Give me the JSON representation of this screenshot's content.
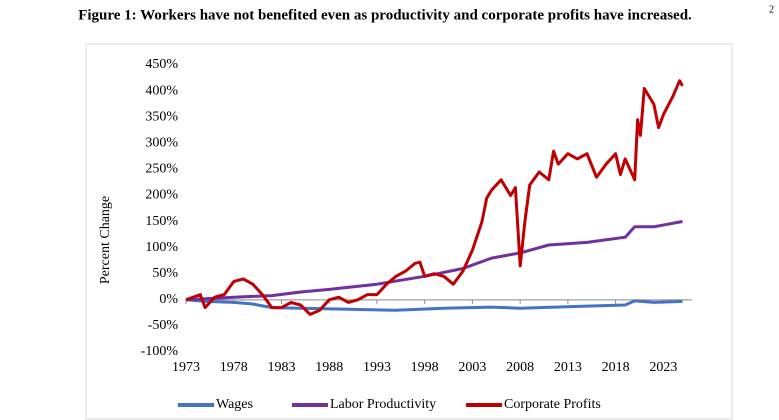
{
  "chart_data": {
    "type": "line",
    "title": "Figure 1: Workers have not benefited even as productivity and corporate profits have increased.",
    "title_note": "2",
    "ylabel": "Percent Change",
    "xlim": [
      1973,
      2026
    ],
    "xticks": [
      1973,
      1978,
      1983,
      1988,
      1993,
      1998,
      2003,
      2008,
      2013,
      2018,
      2023
    ],
    "ylim": [
      -100,
      450
    ],
    "yticks": [
      {
        "value": -100,
        "label": "-100%"
      },
      {
        "value": -50,
        "label": "-50%"
      },
      {
        "value": 0,
        "label": "0%"
      },
      {
        "value": 50,
        "label": "50%"
      },
      {
        "value": 100,
        "label": "100%"
      },
      {
        "value": 150,
        "label": "150%"
      },
      {
        "value": 200,
        "label": "200%"
      },
      {
        "value": 250,
        "label": "250%"
      },
      {
        "value": 300,
        "label": "300%"
      },
      {
        "value": 350,
        "label": "350%"
      },
      {
        "value": 400,
        "label": "400%"
      },
      {
        "value": 450,
        "label": "450%"
      }
    ],
    "grid": false,
    "legend": "bottom",
    "series": [
      {
        "name": "Wages",
        "color": "#4472c4",
        "x": [
          1973,
          1975,
          1978,
          1980,
          1982,
          1985,
          1990,
          1995,
          2000,
          2005,
          2008,
          2010,
          2015,
          2019,
          2020,
          2022,
          2025
        ],
        "values": [
          0,
          -3,
          -5,
          -8,
          -15,
          -16,
          -18,
          -20,
          -16,
          -14,
          -16,
          -15,
          -12,
          -10,
          -2,
          -5,
          -3
        ]
      },
      {
        "name": "Labor Productivity",
        "color": "#7030a0",
        "x": [
          1973,
          1975,
          1978,
          1982,
          1985,
          1988,
          1993,
          1998,
          2002,
          2005,
          2008,
          2011,
          2015,
          2019,
          2020,
          2022,
          2025
        ],
        "values": [
          0,
          2,
          5,
          8,
          15,
          20,
          30,
          45,
          60,
          80,
          90,
          105,
          110,
          120,
          140,
          140,
          150
        ]
      },
      {
        "name": "Corporate Profits",
        "color": "#c00000",
        "x": [
          1973,
          1974.5,
          1975,
          1976,
          1977,
          1978,
          1979,
          1980,
          1981,
          1982,
          1983,
          1984,
          1985,
          1986,
          1987,
          1988,
          1989,
          1990,
          1991,
          1992,
          1993,
          1994,
          1995,
          1996,
          1997,
          1997.5,
          1998,
          1999,
          2000,
          2001,
          2002,
          2003,
          2004,
          2004.5,
          2005,
          2006,
          2007,
          2007.5,
          2008,
          2008.5,
          2009,
          2010,
          2011,
          2011.5,
          2012,
          2013,
          2014,
          2015,
          2016,
          2017,
          2018,
          2018.5,
          2019,
          2020,
          2020.3,
          2020.6,
          2021,
          2022,
          2022.5,
          2023,
          2024,
          2024.7,
          2025
        ],
        "values": [
          0,
          10,
          -15,
          5,
          10,
          35,
          40,
          30,
          10,
          -15,
          -15,
          -5,
          -10,
          -28,
          -20,
          0,
          5,
          -5,
          0,
          10,
          10,
          30,
          45,
          55,
          70,
          72,
          45,
          50,
          45,
          30,
          55,
          95,
          150,
          195,
          210,
          230,
          200,
          215,
          65,
          150,
          220,
          245,
          230,
          285,
          260,
          280,
          270,
          280,
          235,
          260,
          280,
          240,
          270,
          230,
          345,
          315,
          405,
          375,
          330,
          355,
          390,
          420,
          410
        ]
      }
    ]
  }
}
